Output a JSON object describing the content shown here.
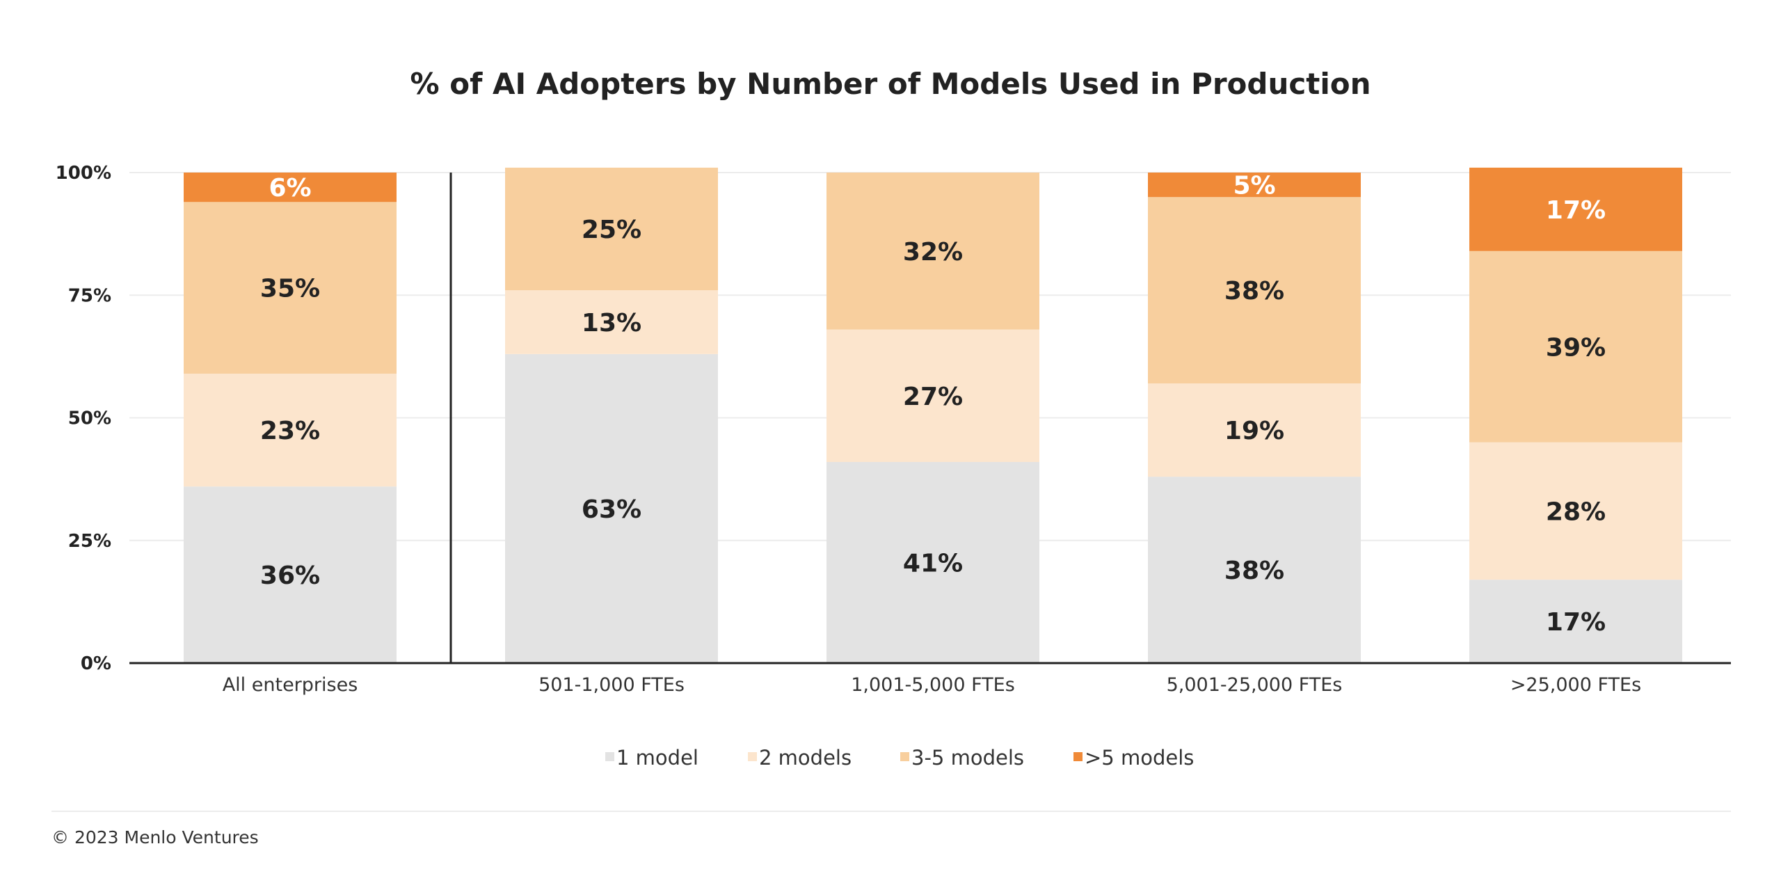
{
  "chart_data": {
    "type": "bar",
    "stacked": true,
    "title": "% of AI Adopters by Number of Models Used in Production",
    "categories": [
      "All enterprises",
      "501-1,000 FTEs",
      "1,001-5,000 FTEs",
      "5,001-25,000 FTEs",
      ">25,000 FTEs"
    ],
    "series": [
      {
        "name": "1 model",
        "color": "#e3e3e3",
        "label_color": "#222222",
        "values": [
          36,
          63,
          41,
          38,
          17
        ]
      },
      {
        "name": "2 models",
        "color": "#fce5cd",
        "label_color": "#222222",
        "values": [
          23,
          13,
          27,
          19,
          28
        ]
      },
      {
        "name": "3-5 models",
        "color": "#f8cf9e",
        "label_color": "#222222",
        "values": [
          35,
          25,
          32,
          38,
          39
        ]
      },
      {
        "name": ">5 models",
        "color": "#f08a38",
        "label_color": "#ffffff",
        "values": [
          6,
          0,
          0,
          5,
          17
        ]
      }
    ],
    "data_labels": [
      [
        "36%",
        "23%",
        "35%",
        "6%"
      ],
      [
        "63%",
        "13%",
        "25%",
        ""
      ],
      [
        "41%",
        "27%",
        "32%",
        ""
      ],
      [
        "38%",
        "19%",
        "38%",
        "5%"
      ],
      [
        "17%",
        "28%",
        "39%",
        "17%"
      ]
    ],
    "yticks": [
      "0%",
      "25%",
      "50%",
      "75%",
      "100%"
    ],
    "ylim": [
      0,
      100
    ],
    "grid": true,
    "legend_position": "bottom-center",
    "separator_after_category": 0
  },
  "footer": {
    "copyright": "© 2023 Menlo Ventures"
  }
}
